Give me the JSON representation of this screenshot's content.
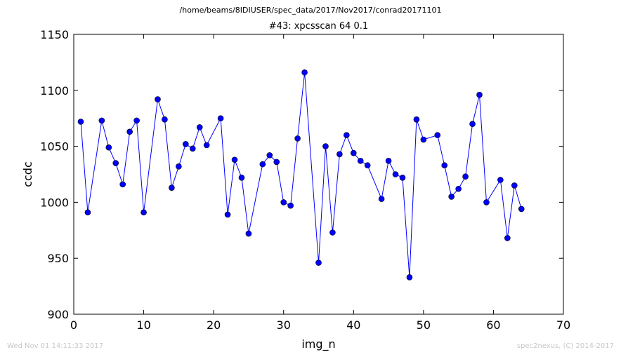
{
  "header": {
    "path": "/home/beams/8IDIUSER/spec_data/2017/Nov2017/conrad20171101",
    "title": "#43: xpcsscan 64 0.1"
  },
  "footer": {
    "timestamp": "Wed Nov 01 14:11:33 2017",
    "credit": "spec2nexus, (C) 2014-2017"
  },
  "chart_data": {
    "type": "line",
    "xlabel": "img_n",
    "ylabel": "ccdc",
    "xlim": [
      0,
      70
    ],
    "ylim": [
      900,
      1150
    ],
    "xticks": [
      0,
      10,
      20,
      30,
      40,
      50,
      60,
      70
    ],
    "yticks": [
      900,
      950,
      1000,
      1050,
      1100,
      1150
    ],
    "grid": false,
    "line_color": "#0000ff",
    "marker_color": "#0000ff",
    "series": [
      {
        "x": [
          1,
          2,
          4,
          5,
          6,
          7,
          8,
          9,
          10,
          12,
          13,
          14,
          15,
          16,
          17,
          18,
          19,
          21,
          22,
          23,
          24,
          25,
          27,
          28,
          29,
          30,
          31,
          32,
          33,
          35,
          36,
          37,
          38,
          39,
          40,
          41,
          42,
          44,
          45,
          46,
          47,
          48,
          49,
          50,
          52,
          53,
          54,
          55,
          56,
          57,
          58,
          59,
          61,
          62,
          63,
          64
        ],
        "y": [
          1072,
          991,
          1073,
          1049,
          1035,
          1016,
          1063,
          1073,
          991,
          1092,
          1074,
          1013,
          1032,
          1052,
          1048,
          1067,
          1051,
          1075,
          989,
          1038,
          1022,
          972,
          1034,
          1042,
          1036,
          1000,
          997,
          1057,
          1116,
          946,
          1050,
          973,
          1043,
          1060,
          1044,
          1037,
          1033,
          1003,
          1037,
          1025,
          1022,
          933,
          1074,
          1056,
          1060,
          1033,
          1005,
          1012,
          1023,
          1070,
          1096,
          1000,
          1020,
          968,
          1015,
          994
        ]
      }
    ]
  }
}
